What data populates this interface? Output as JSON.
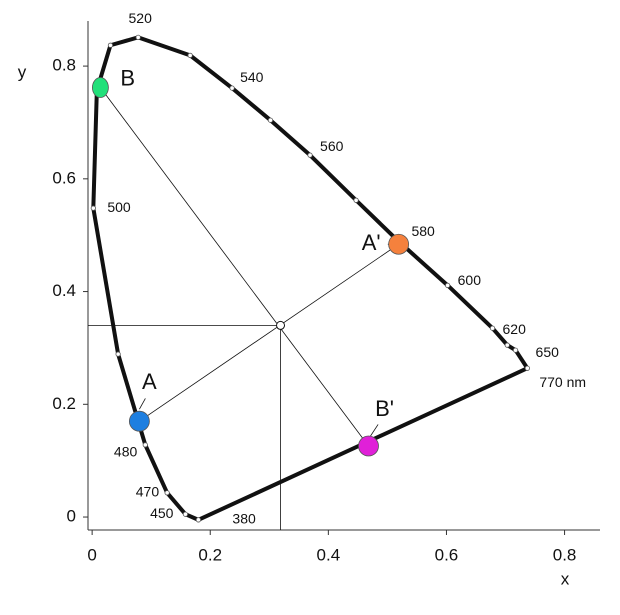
{
  "chart_data": {
    "type": "scatter",
    "xlabel": "x",
    "ylabel": "y",
    "xlim": [
      -0.007,
      0.86
    ],
    "ylim": [
      -0.023,
      0.88
    ],
    "xticks": [
      0,
      0.2,
      0.4,
      0.6,
      0.8
    ],
    "yticks": [
      0,
      0.2,
      0.4,
      0.6,
      0.8
    ],
    "locus": {
      "color": "#111111",
      "x": [
        0.18,
        0.158,
        0.127,
        0.09,
        0.044,
        0.002,
        0.008,
        0.031,
        0.078,
        0.166,
        0.237,
        0.302,
        0.369,
        0.447,
        0.517,
        0.602,
        0.678,
        0.703,
        0.717,
        0.737
      ],
      "y": [
        -0.005,
        0.005,
        0.043,
        0.128,
        0.289,
        0.548,
        0.757,
        0.837,
        0.851,
        0.819,
        0.761,
        0.704,
        0.642,
        0.562,
        0.491,
        0.411,
        0.335,
        0.305,
        0.296,
        0.264
      ],
      "labels": [
        "380",
        "450",
        "470",
        "480",
        null,
        "500",
        null,
        null,
        "520",
        null,
        "540",
        null,
        "560",
        null,
        "580",
        "600",
        "620",
        null,
        "650",
        "770 nm"
      ]
    },
    "white_point": {
      "x": 0.319,
      "y": 0.34
    },
    "points": [
      {
        "name": "A",
        "x": 0.08,
        "y": 0.17,
        "color": "#1e7fe0"
      },
      {
        "name": "B",
        "x": 0.014,
        "y": 0.762,
        "color": "#22e07a"
      },
      {
        "name": "A'",
        "x": 0.519,
        "y": 0.484,
        "color": "#f5813d"
      },
      {
        "name": "B'",
        "x": 0.468,
        "y": 0.126,
        "color": "#e020d8"
      }
    ]
  }
}
